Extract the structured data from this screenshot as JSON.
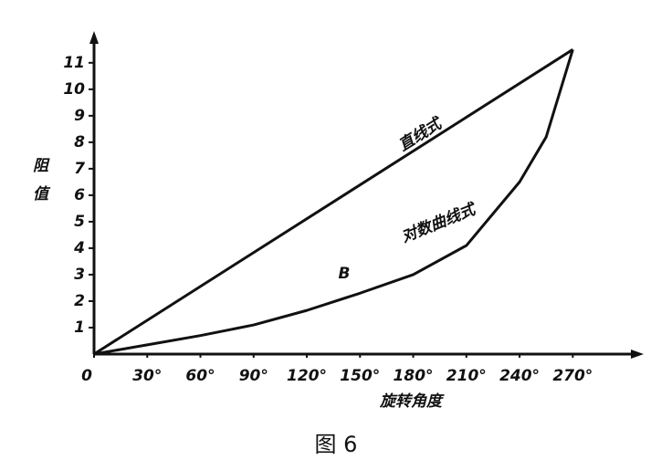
{
  "chart_data": {
    "type": "line",
    "caption": "图 6",
    "x_label": "旋转角度",
    "y_label": "阻值",
    "annotation": "B",
    "xlim": [
      0,
      310
    ],
    "ylim": [
      0,
      12.2
    ],
    "xticks": [
      0,
      {
        "value": 30,
        "label": "30°"
      },
      {
        "value": 60,
        "label": "60°"
      },
      {
        "value": 90,
        "label": "90°"
      },
      {
        "value": 120,
        "label": "120°"
      },
      {
        "value": 150,
        "label": "150°"
      },
      {
        "value": 180,
        "label": "180°"
      },
      {
        "value": 210,
        "label": "210°"
      },
      {
        "value": 240,
        "label": "240°"
      },
      {
        "value": 270,
        "label": "270°"
      }
    ],
    "yticks": [
      1,
      2,
      3,
      4,
      5,
      6,
      7,
      8,
      9,
      10,
      11
    ],
    "series": [
      {
        "name": "直线式",
        "color": "#111111",
        "x": [
          0,
          270
        ],
        "values": [
          0,
          11.5
        ]
      },
      {
        "name": "对数曲线式",
        "color": "#111111",
        "x": [
          0,
          30,
          60,
          90,
          120,
          150,
          180,
          210,
          240,
          255,
          270
        ],
        "values": [
          0,
          0.35,
          0.7,
          1.1,
          1.65,
          2.3,
          3.0,
          4.1,
          6.5,
          8.2,
          11.5
        ]
      }
    ]
  }
}
